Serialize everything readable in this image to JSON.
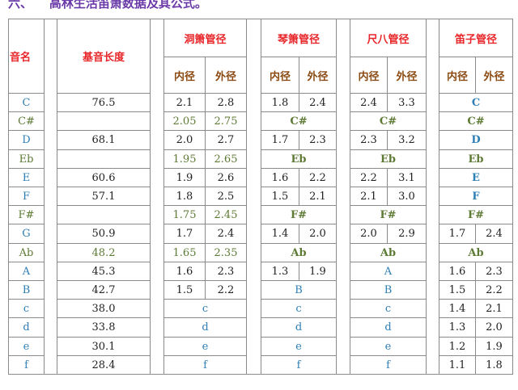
{
  "title": "六、    高林生活笛箫数据及其公式。",
  "headers": {
    "note": "音名",
    "base_length": "基音长度",
    "groups": [
      "洞箫管径",
      "琴箫管径",
      "尺八管径",
      "笛子管径"
    ],
    "inner": "内径",
    "outer": "外径"
  },
  "colors": {
    "header": "#e8262a",
    "subheader": "#8a4a12",
    "natural": "#2e7fb5",
    "accidental": "#5d7a34",
    "title": "#6a3aa8"
  },
  "rows": [
    {
      "note": "C",
      "acc": false,
      "base": "76.5",
      "groups": [
        [
          "2.1",
          "2.8"
        ],
        [
          "1.8",
          "2.4"
        ],
        [
          "2.4",
          "3.3"
        ],
        "C"
      ]
    },
    {
      "note": "C#",
      "acc": true,
      "base": "",
      "groups": [
        [
          "2.05",
          "2.75"
        ],
        "C#",
        "C#",
        "C#"
      ]
    },
    {
      "note": "D",
      "acc": false,
      "base": "68.1",
      "groups": [
        [
          "2.0",
          "2.7"
        ],
        [
          "1.7",
          "2.3"
        ],
        [
          "2.3",
          "3.2"
        ],
        "D"
      ]
    },
    {
      "note": "Eb",
      "acc": true,
      "base": "",
      "groups": [
        [
          "1.95",
          "2.65"
        ],
        "Eb",
        "Eb",
        "Eb"
      ]
    },
    {
      "note": "E",
      "acc": false,
      "base": "60.6",
      "groups": [
        [
          "1.9",
          "2.6"
        ],
        [
          "1.6",
          "2.2"
        ],
        [
          "2.2",
          "3.1"
        ],
        "E"
      ]
    },
    {
      "note": "F",
      "acc": false,
      "base": "57.1",
      "groups": [
        [
          "1.8",
          "2.5"
        ],
        [
          "1.5",
          "2.1"
        ],
        [
          "2.1",
          "3.0"
        ],
        "F"
      ]
    },
    {
      "note": "F#",
      "acc": true,
      "base": "",
      "groups": [
        [
          "1.75",
          "2.45"
        ],
        "F#",
        "F#",
        "F#"
      ]
    },
    {
      "note": "G",
      "acc": false,
      "base": "50.9",
      "groups": [
        [
          "1.7",
          "2.4"
        ],
        [
          "1.4",
          "2.0"
        ],
        [
          "2.0",
          "2.9"
        ],
        [
          "1.7",
          "2.4"
        ]
      ]
    },
    {
      "note": "Ab",
      "acc": true,
      "base": "48.2",
      "groups": [
        [
          "1.65",
          "2.35"
        ],
        "Ab",
        "Ab",
        "Ab"
      ]
    },
    {
      "note": "A",
      "acc": false,
      "base": "45.3",
      "groups": [
        [
          "1.6",
          "2.3"
        ],
        [
          "1.3",
          "1.9"
        ],
        "A",
        [
          "1.6",
          "2.3"
        ]
      ]
    },
    {
      "note": "B",
      "acc": false,
      "base": "42.7",
      "groups": [
        [
          "1.5",
          "2.2"
        ],
        "B",
        "B",
        [
          "1.5",
          "2.2"
        ]
      ]
    },
    {
      "note": "c",
      "acc": false,
      "base": "38.0",
      "groups": [
        "c",
        "c",
        "c",
        [
          "1.4",
          "2.1"
        ]
      ]
    },
    {
      "note": "d",
      "acc": false,
      "base": "33.8",
      "groups": [
        "d",
        "d",
        "d",
        [
          "1.3",
          "2.0"
        ]
      ]
    },
    {
      "note": "e",
      "acc": false,
      "base": "30.1",
      "groups": [
        "e",
        "e",
        "e",
        [
          "1.2",
          "1.9"
        ]
      ]
    },
    {
      "note": "f",
      "acc": false,
      "base": "28.4",
      "groups": [
        "f",
        "f",
        "f",
        [
          "1.1",
          "1.8"
        ]
      ]
    }
  ]
}
